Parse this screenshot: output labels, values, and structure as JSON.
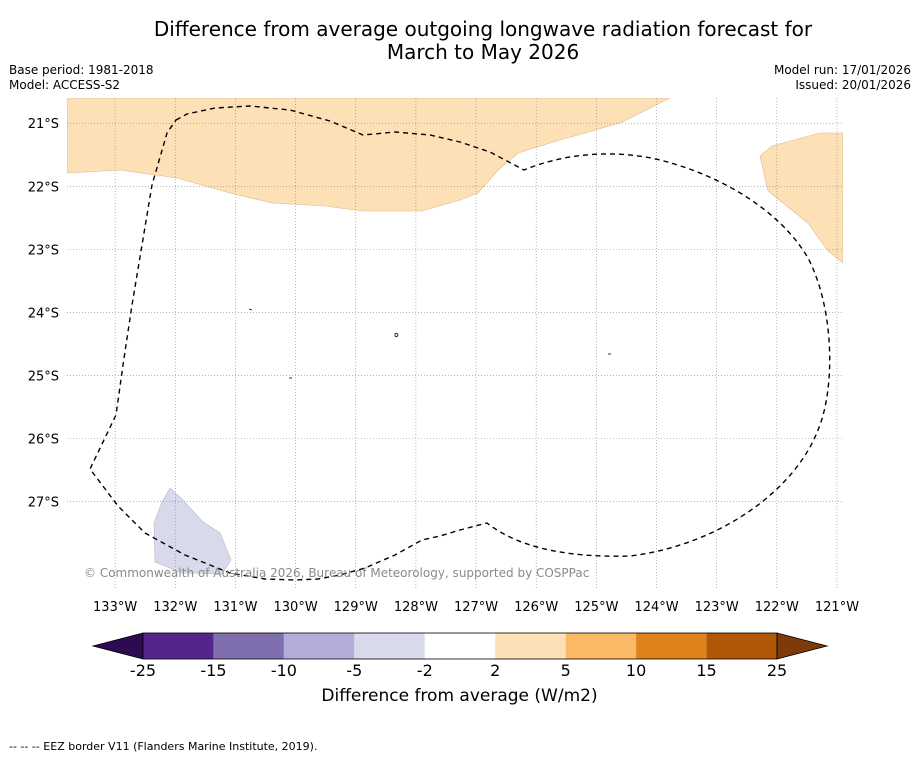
{
  "title": {
    "line1": "Difference from average outgoing longwave radiation forecast for",
    "line2": "March to May 2026"
  },
  "meta_left": {
    "base_period": "Base period: 1981-2018",
    "model": "Model: ACCESS-S2"
  },
  "meta_right": {
    "model_run": "Model run: 17/01/2026",
    "issued": "Issued: 20/01/2026"
  },
  "map": {
    "lon_labels": [
      "133°W",
      "132°W",
      "131°W",
      "130°W",
      "129°W",
      "128°W",
      "127°W",
      "126°W",
      "125°W",
      "124°W",
      "123°W",
      "122°W",
      "121°W"
    ],
    "lat_labels": [
      "21°S",
      "22°S",
      "23°S",
      "24°S",
      "25°S",
      "26°S",
      "27°S"
    ],
    "lon_range": [
      -133.8,
      -120.9
    ],
    "lat_range": [
      -28.4,
      -20.6
    ],
    "copyright": "© Commonwealth of Australia 2026, Bureau of Meteorology, supported by COSPPac",
    "colors": {
      "land_fill": "#fde0b6",
      "negative_fill": "#d8d9ea",
      "grid": "#888888"
    }
  },
  "colorbar": {
    "ticks": [
      "-25",
      "-15",
      "-10",
      "-5",
      "-2",
      "2",
      "5",
      "10",
      "15",
      "25"
    ],
    "colors": [
      "#2d0a52",
      "#54258a",
      "#7f6fae",
      "#b3addb",
      "#d9d9ec",
      "#ffffff",
      "#fde0b6",
      "#fbb865",
      "#e0821b",
      "#b05806",
      "#7e3a08"
    ],
    "label": "Difference from average (W/m2)"
  },
  "footer": "--  --  -- EEZ border V11 (Flanders Marine Institute, 2019)."
}
